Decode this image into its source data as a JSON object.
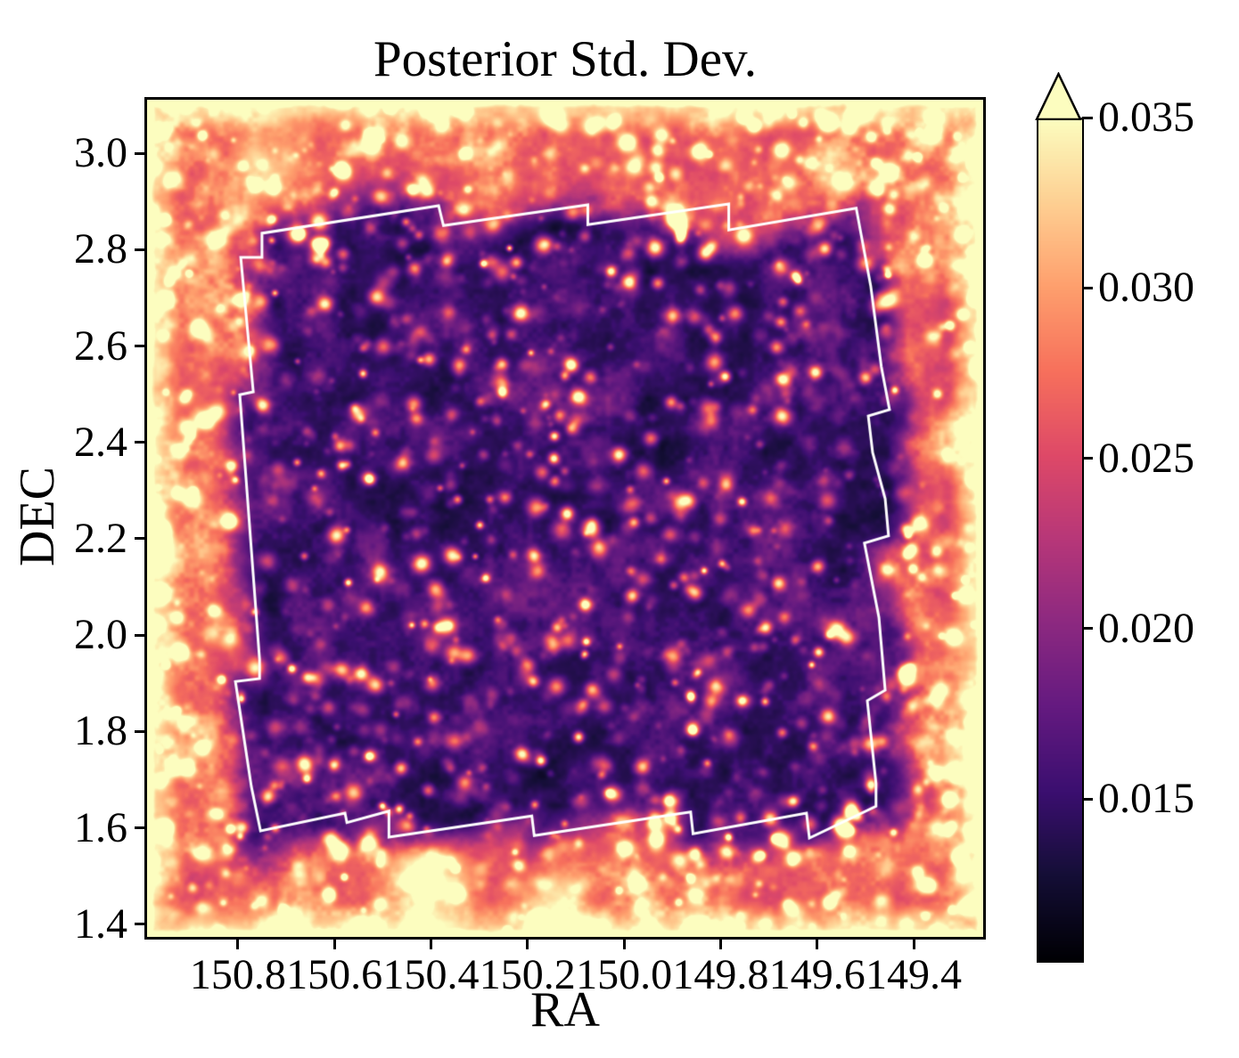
{
  "figure": {
    "title": "Posterior Std. Dev.",
    "xlabel": "RA",
    "ylabel": "DEC"
  },
  "colors": {
    "background": "#ffffff",
    "axes": "#000000",
    "footprint_outline": "#ffffff"
  },
  "chart_data": {
    "type": "heatmap",
    "title": "Posterior Std. Dev.",
    "xlabel": "RA",
    "ylabel": "DEC",
    "grid": false,
    "x_axis": {
      "range": [
        150.988,
        149.256
      ],
      "reversed": true,
      "tick_values": [
        150.8,
        150.6,
        150.4,
        150.2,
        150.0,
        149.8,
        149.6,
        149.4
      ],
      "tick_labels": [
        "150.8",
        "150.6",
        "150.4",
        "150.2",
        "150.0",
        "149.8",
        "149.6",
        "149.4"
      ]
    },
    "y_axis": {
      "range": [
        1.374,
        3.111
      ],
      "tick_values": [
        3.0,
        2.8,
        2.6,
        2.4,
        2.2,
        2.0,
        1.8,
        1.6,
        1.4
      ],
      "tick_labels": [
        "3.0",
        "2.8",
        "2.6",
        "2.4",
        "2.2",
        "2.0",
        "1.8",
        "1.6",
        "1.4"
      ]
    },
    "colorbar": {
      "colormap": "magma",
      "vmin": 0.0103,
      "vmax": 0.035,
      "extend": "max",
      "tick_values": [
        0.035,
        0.03,
        0.025,
        0.02,
        0.015
      ],
      "tick_labels": [
        "0.035",
        "0.030",
        "0.025",
        "0.020",
        "0.015"
      ]
    },
    "field_summary": {
      "description": "Posterior standard deviation map over the COSMOS field: low values (dark, ~0.013-0.018) inside the survey footprint outlined in white; high values (bright orange/yellow, ~0.026-0.035+) outside the footprint, saturating near the map edges.",
      "inside_footprint_typical": 0.015,
      "outside_footprint_typical": 0.029,
      "edge_values_exceed": 0.035
    },
    "footprint_polygon": {
      "coords": "ra_dec",
      "vertices": [
        [
          150.75,
          2.834
        ],
        [
          150.75,
          2.784
        ],
        [
          150.794,
          2.784
        ],
        [
          150.768,
          2.505
        ],
        [
          150.796,
          2.499
        ],
        [
          150.755,
          1.95
        ],
        [
          150.755,
          1.91
        ],
        [
          150.805,
          1.904
        ],
        [
          150.772,
          1.686
        ],
        [
          150.753,
          1.594
        ],
        [
          150.578,
          1.631
        ],
        [
          150.574,
          1.611
        ],
        [
          150.487,
          1.635
        ],
        [
          150.487,
          1.581
        ],
        [
          150.191,
          1.625
        ],
        [
          150.186,
          1.584
        ],
        [
          149.862,
          1.633
        ],
        [
          149.857,
          1.588
        ],
        [
          149.622,
          1.631
        ],
        [
          149.616,
          1.579
        ],
        [
          149.478,
          1.645
        ],
        [
          149.478,
          1.692
        ],
        [
          149.496,
          1.864
        ],
        [
          149.459,
          1.886
        ],
        [
          149.472,
          2.037
        ],
        [
          149.502,
          2.191
        ],
        [
          149.452,
          2.206
        ],
        [
          149.459,
          2.283
        ],
        [
          149.485,
          2.379
        ],
        [
          149.494,
          2.455
        ],
        [
          149.45,
          2.468
        ],
        [
          149.467,
          2.557
        ],
        [
          149.489,
          2.725
        ],
        [
          149.519,
          2.886
        ],
        [
          149.783,
          2.841
        ],
        [
          149.783,
          2.895
        ],
        [
          150.075,
          2.852
        ],
        [
          150.075,
          2.893
        ],
        [
          150.374,
          2.85
        ],
        [
          150.384,
          2.891
        ]
      ]
    },
    "colormap_stops": [
      "#000004",
      "#140e36",
      "#3b0f70",
      "#641a80",
      "#8c2981",
      "#b73779",
      "#de4968",
      "#f7705c",
      "#fe9f6d",
      "#fecf92",
      "#fcfdbf"
    ]
  }
}
